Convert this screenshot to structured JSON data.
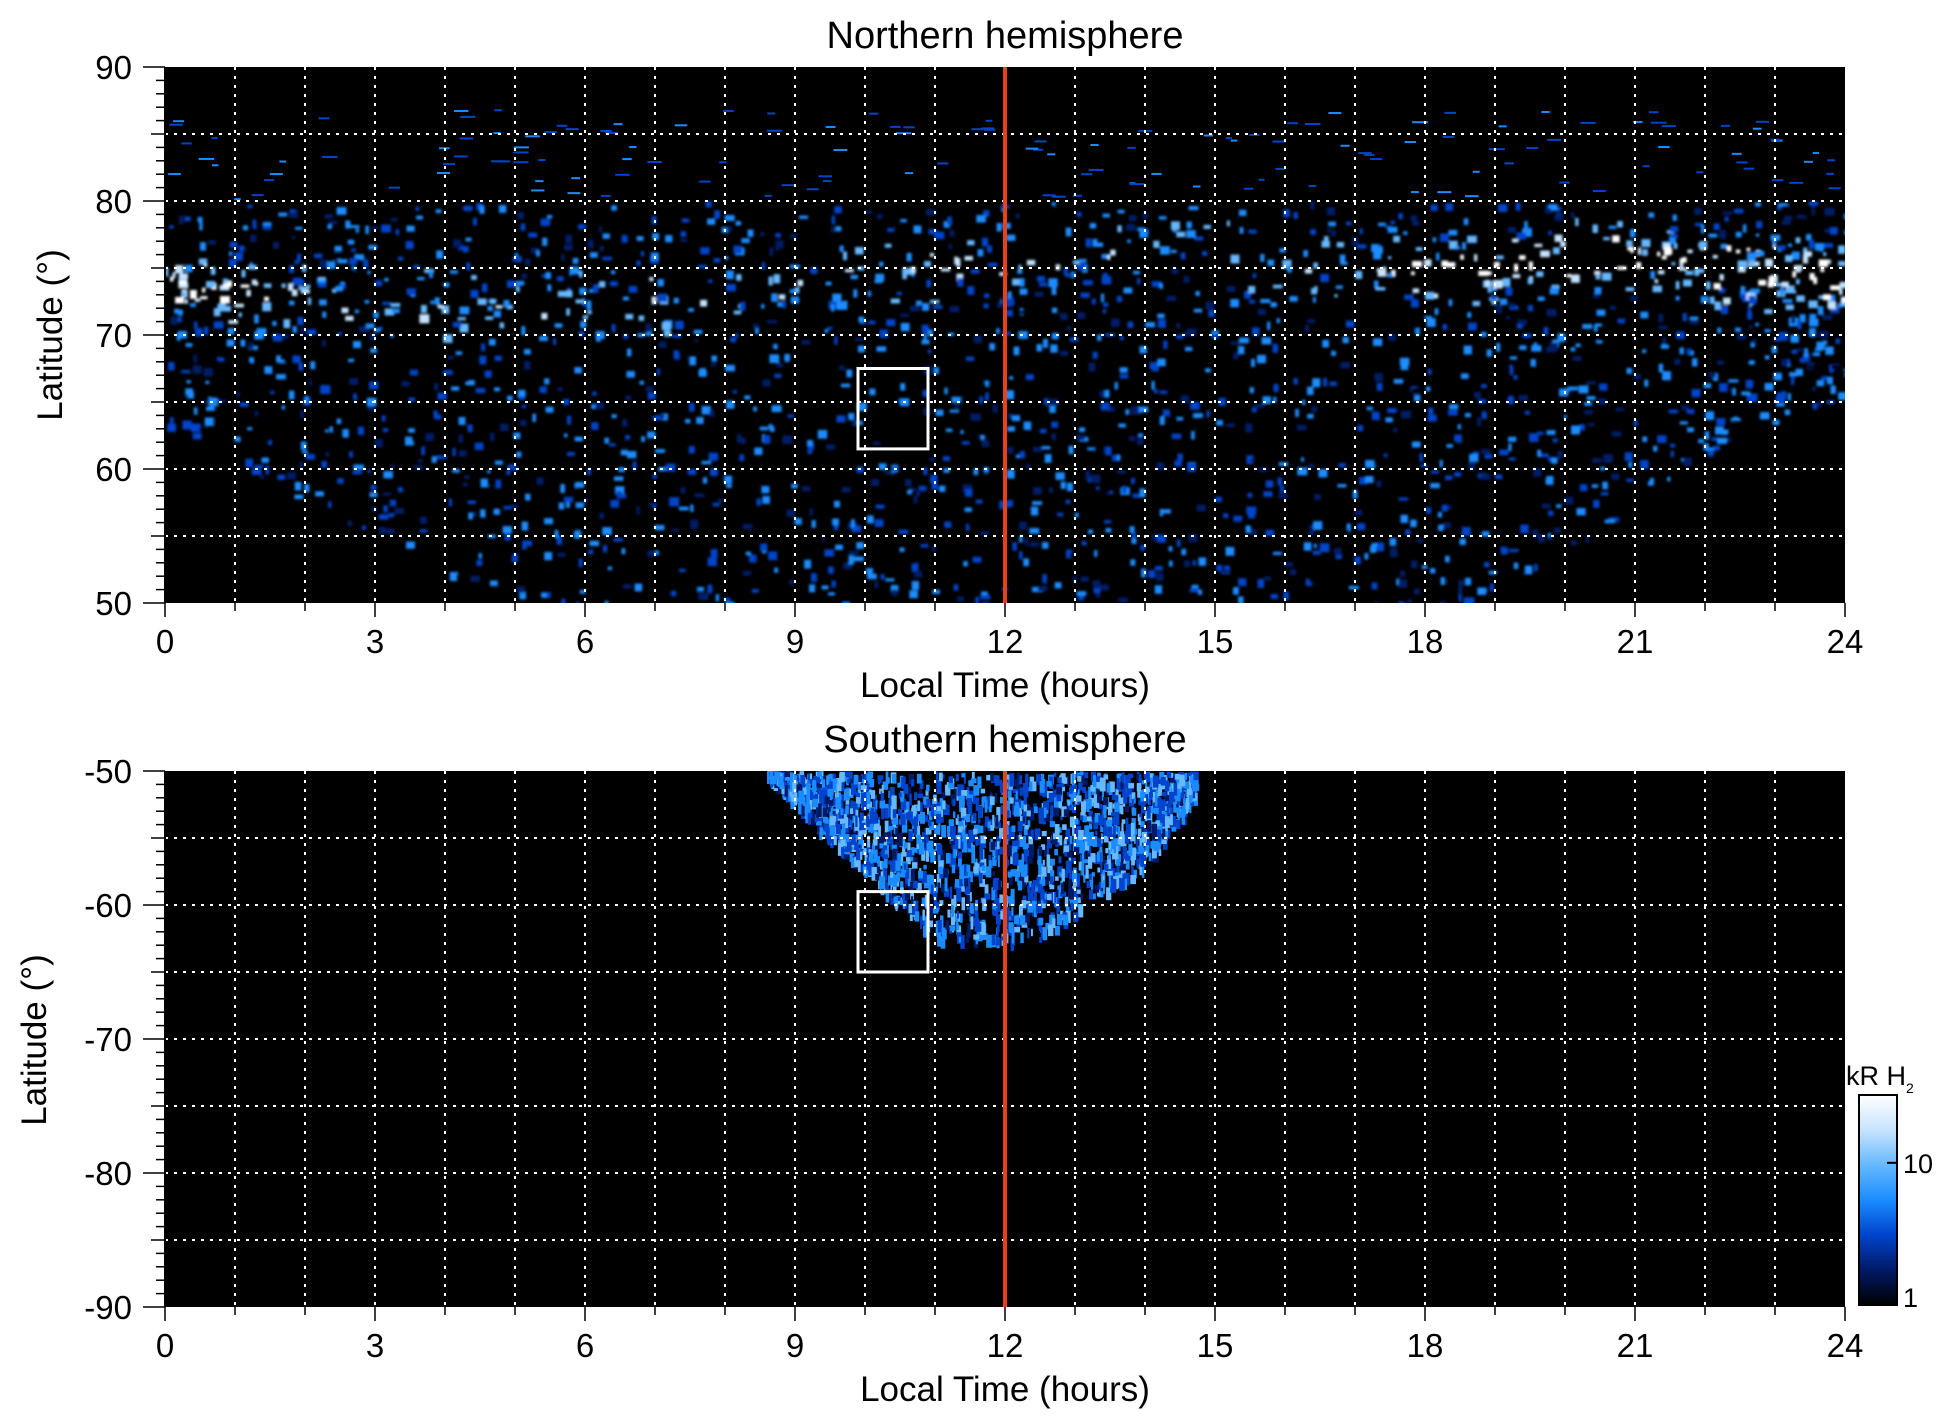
{
  "chart_data": [
    {
      "type": "heatmap",
      "title": "Northern hemisphere",
      "xlabel": "Local Time (hours)",
      "ylabel": "Latitude (°)",
      "xlim": [
        0,
        24
      ],
      "ylim": [
        50,
        90
      ],
      "x_ticks": [
        0,
        3,
        6,
        9,
        12,
        15,
        18,
        21,
        24
      ],
      "y_ticks": [
        50,
        60,
        70,
        80,
        90
      ],
      "grid": true,
      "grid_x_step_hours": 1,
      "grid_y_step_deg": 5,
      "background_color": "#000000",
      "noon_line": {
        "x": 12,
        "color": "#e8401a"
      },
      "highlight_box": {
        "x_range": [
          9.9,
          10.9
        ],
        "y_range": [
          61.5,
          67.5
        ],
        "color": "#ffffff"
      },
      "emission": {
        "auroral_oval_lat_by_lt": [
          [
            0,
            74
          ],
          [
            3,
            72
          ],
          [
            6,
            72.5
          ],
          [
            9,
            74
          ],
          [
            12,
            76
          ],
          [
            15,
            76.5
          ],
          [
            18,
            75
          ],
          [
            21,
            76
          ],
          [
            24,
            74
          ]
        ],
        "coverage_lower_edge_lat_by_lt": [
          [
            0,
            63
          ],
          [
            3,
            55
          ],
          [
            4.8,
            50
          ],
          [
            18.6,
            50
          ],
          [
            20.5,
            55
          ],
          [
            22.5,
            63
          ],
          [
            24,
            65
          ]
        ],
        "coverage_upper_lat": 80,
        "peak_region_lt": [
          [
            0,
            1.5
          ],
          [
            17.5,
            24
          ]
        ]
      }
    },
    {
      "type": "heatmap",
      "title": "Southern hemisphere",
      "xlabel": "Local Time (hours)",
      "ylabel": "Latitude (°)",
      "xlim": [
        0,
        24
      ],
      "ylim": [
        -90,
        -50
      ],
      "x_ticks": [
        0,
        3,
        6,
        9,
        12,
        15,
        18,
        21,
        24
      ],
      "y_ticks": [
        -50,
        -60,
        -70,
        -80,
        -90
      ],
      "grid": true,
      "grid_x_step_hours": 1,
      "grid_y_step_deg": 5,
      "background_color": "#000000",
      "noon_line": {
        "x": 12,
        "color": "#e8401a"
      },
      "highlight_box": {
        "x_range": [
          9.9,
          10.9
        ],
        "y_range": [
          -65,
          -59
        ]
      },
      "emission": {
        "coverage_lt_range": [
          8.6,
          14.7
        ],
        "coverage_lower_edge_lat_by_lt": [
          [
            8.6,
            -50
          ],
          [
            9.5,
            -55
          ],
          [
            11,
            -62.5
          ],
          [
            12.5,
            -62.5
          ],
          [
            14,
            -57
          ],
          [
            14.7,
            -52
          ]
        ]
      }
    }
  ],
  "colorbar": {
    "label_main": "kR H",
    "label_sub": "2",
    "ticks": [
      "1",
      "10"
    ],
    "scale": "log",
    "range": [
      1,
      30
    ],
    "colors": [
      "#000000",
      "#001a66",
      "#0044cc",
      "#1a8cff",
      "#66b8ff",
      "#c6e4ff",
      "#ffffff"
    ]
  }
}
